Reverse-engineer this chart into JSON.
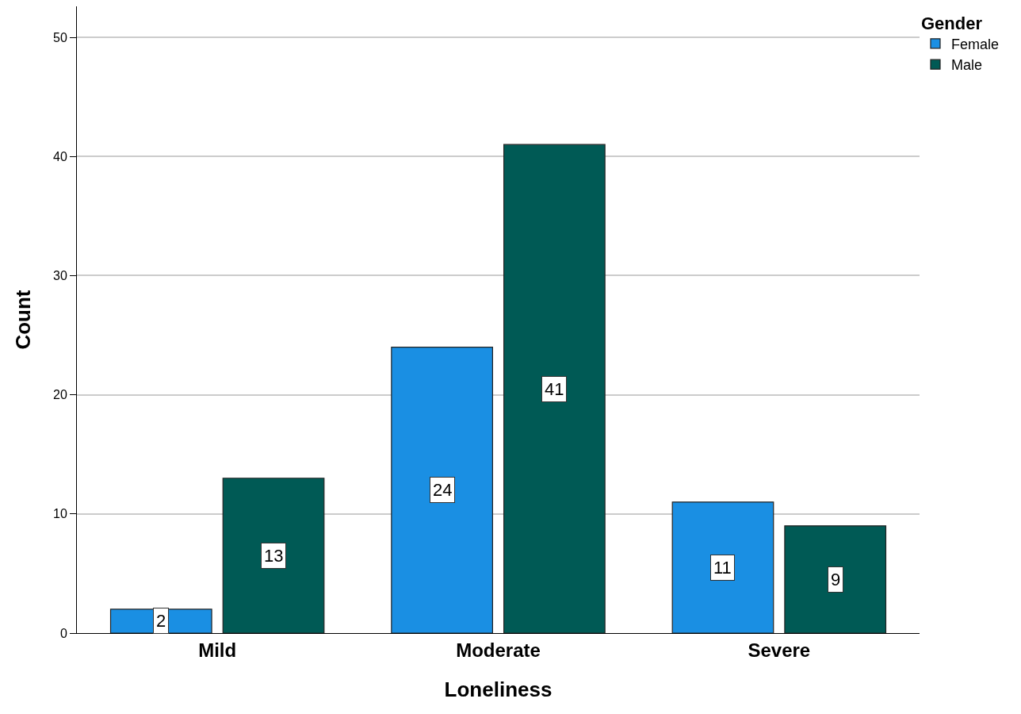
{
  "chart_data": {
    "type": "bar",
    "xlabel": "Loneliness",
    "ylabel": "Count",
    "legend_title": "Gender",
    "categories": [
      "Mild",
      "Moderate",
      "Severe"
    ],
    "series": [
      {
        "name": "Female",
        "color": "#1a8fe3",
        "values": [
          2,
          24,
          11
        ]
      },
      {
        "name": "Male",
        "color": "#005a55",
        "values": [
          13,
          41,
          9
        ]
      }
    ],
    "ylim": [
      0,
      52.6
    ],
    "yticks": [
      0,
      10,
      20,
      30,
      40,
      50
    ],
    "grid": "y",
    "legend": "top right",
    "data_labels": true
  }
}
